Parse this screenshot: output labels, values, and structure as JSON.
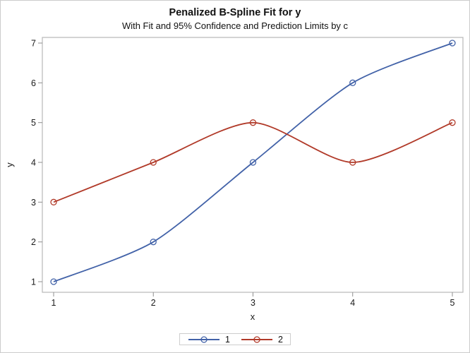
{
  "chart_data": {
    "type": "line",
    "title": "Penalized B-Spline Fit for y",
    "subtitle": "With Fit and 95% Confidence and Prediction Limits by c",
    "xlabel": "x",
    "ylabel": "y",
    "x": [
      1,
      2,
      3,
      4,
      5
    ],
    "x_ticks": [
      1,
      2,
      3,
      4,
      5
    ],
    "y_ticks": [
      1,
      2,
      3,
      4,
      5,
      6,
      7
    ],
    "xlim": [
      1,
      5
    ],
    "ylim": [
      1,
      7
    ],
    "grid": false,
    "legend_position": "bottom-center",
    "series": [
      {
        "name": "1",
        "marker": "open-circle",
        "color": "#4262a8",
        "values": [
          1,
          2,
          4,
          6,
          7
        ]
      },
      {
        "name": "2",
        "marker": "open-circle",
        "color": "#b13a29",
        "values": [
          3,
          4,
          5,
          4,
          5
        ]
      }
    ]
  },
  "colors": {
    "figure_border": "#cccccc",
    "wall_border": "#bdbdbd",
    "tick": "#909090",
    "text": "#1a1a1a"
  }
}
